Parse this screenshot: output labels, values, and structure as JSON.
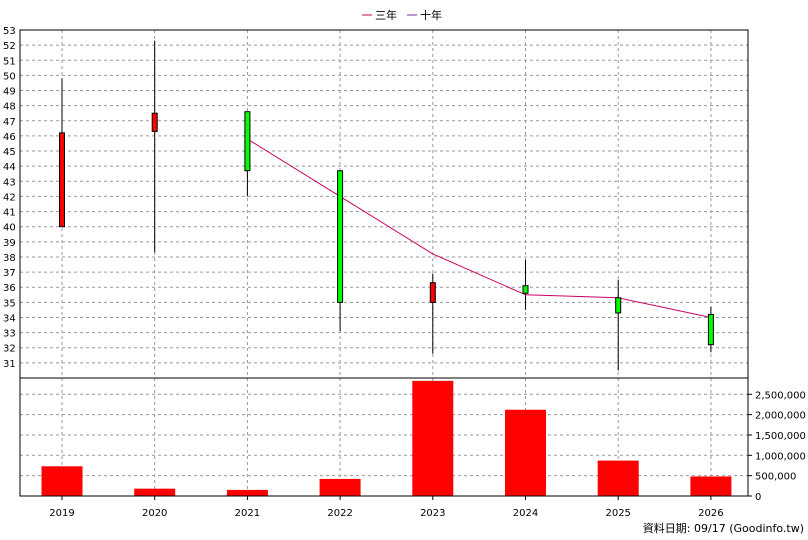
{
  "chart_data": {
    "type": "candlestick",
    "categories": [
      "2019",
      "2020",
      "2021",
      "2022",
      "2023",
      "2024",
      "2025",
      "2026"
    ],
    "price": {
      "ylim": [
        30,
        53
      ],
      "ticks": [
        31,
        32,
        33,
        34,
        35,
        36,
        37,
        38,
        39,
        40,
        41,
        42,
        43,
        44,
        45,
        46,
        47,
        48,
        49,
        50,
        51,
        52,
        53
      ],
      "candles": [
        {
          "x": "2019",
          "open": 40.0,
          "close": 46.2,
          "high": 49.8,
          "low": 40.0,
          "color": "#ff0000"
        },
        {
          "x": "2020",
          "open": 46.3,
          "close": 47.5,
          "high": 52.3,
          "low": 38.3,
          "color": "#ff0000"
        },
        {
          "x": "2021",
          "open": 47.6,
          "close": 43.7,
          "high": 47.6,
          "low": 42.0,
          "color": "#00ff00"
        },
        {
          "x": "2022",
          "open": 43.7,
          "close": 35.0,
          "high": 43.7,
          "low": 33.1,
          "color": "#00ff00"
        },
        {
          "x": "2023",
          "open": 35.0,
          "close": 36.3,
          "high": 36.9,
          "low": 31.6,
          "color": "#ff0000"
        },
        {
          "x": "2024",
          "open": 36.1,
          "close": 35.6,
          "high": 37.8,
          "low": 34.5,
          "color": "#00ff00"
        },
        {
          "x": "2025",
          "open": 35.3,
          "close": 34.3,
          "high": 36.5,
          "low": 30.5,
          "color": "#00ff00"
        },
        {
          "x": "2026",
          "open": 34.2,
          "close": 32.2,
          "high": 34.7,
          "low": 31.7,
          "color": "#00ff00"
        }
      ]
    },
    "series": [
      {
        "name": "三年",
        "color": "#cc0066",
        "points": [
          {
            "x": "2021",
            "y": 45.8
          },
          {
            "x": "2022",
            "y": 42.0
          },
          {
            "x": "2023",
            "y": 38.2
          },
          {
            "x": "2024",
            "y": 35.5
          },
          {
            "x": "2025",
            "y": 35.3
          },
          {
            "x": "2026",
            "y": 34.0
          }
        ]
      },
      {
        "name": "十年",
        "color": "#7030a0",
        "points": []
      }
    ],
    "volume": {
      "ylim": [
        0,
        2900000
      ],
      "ticks": [
        0,
        500000,
        1000000,
        1500000,
        2000000,
        2500000
      ],
      "tick_labels": [
        "0",
        "500,000",
        "1,000,000",
        "1,500,000",
        "2,000,000",
        "2,500,000"
      ],
      "values": [
        730000,
        180000,
        150000,
        420000,
        2830000,
        2120000,
        870000,
        480000
      ],
      "color": "#ff0000"
    },
    "grid": true,
    "legend": "top-center"
  },
  "footer": {
    "source_text": "資料日期: 09/17  (Goodinfo.tw)"
  }
}
